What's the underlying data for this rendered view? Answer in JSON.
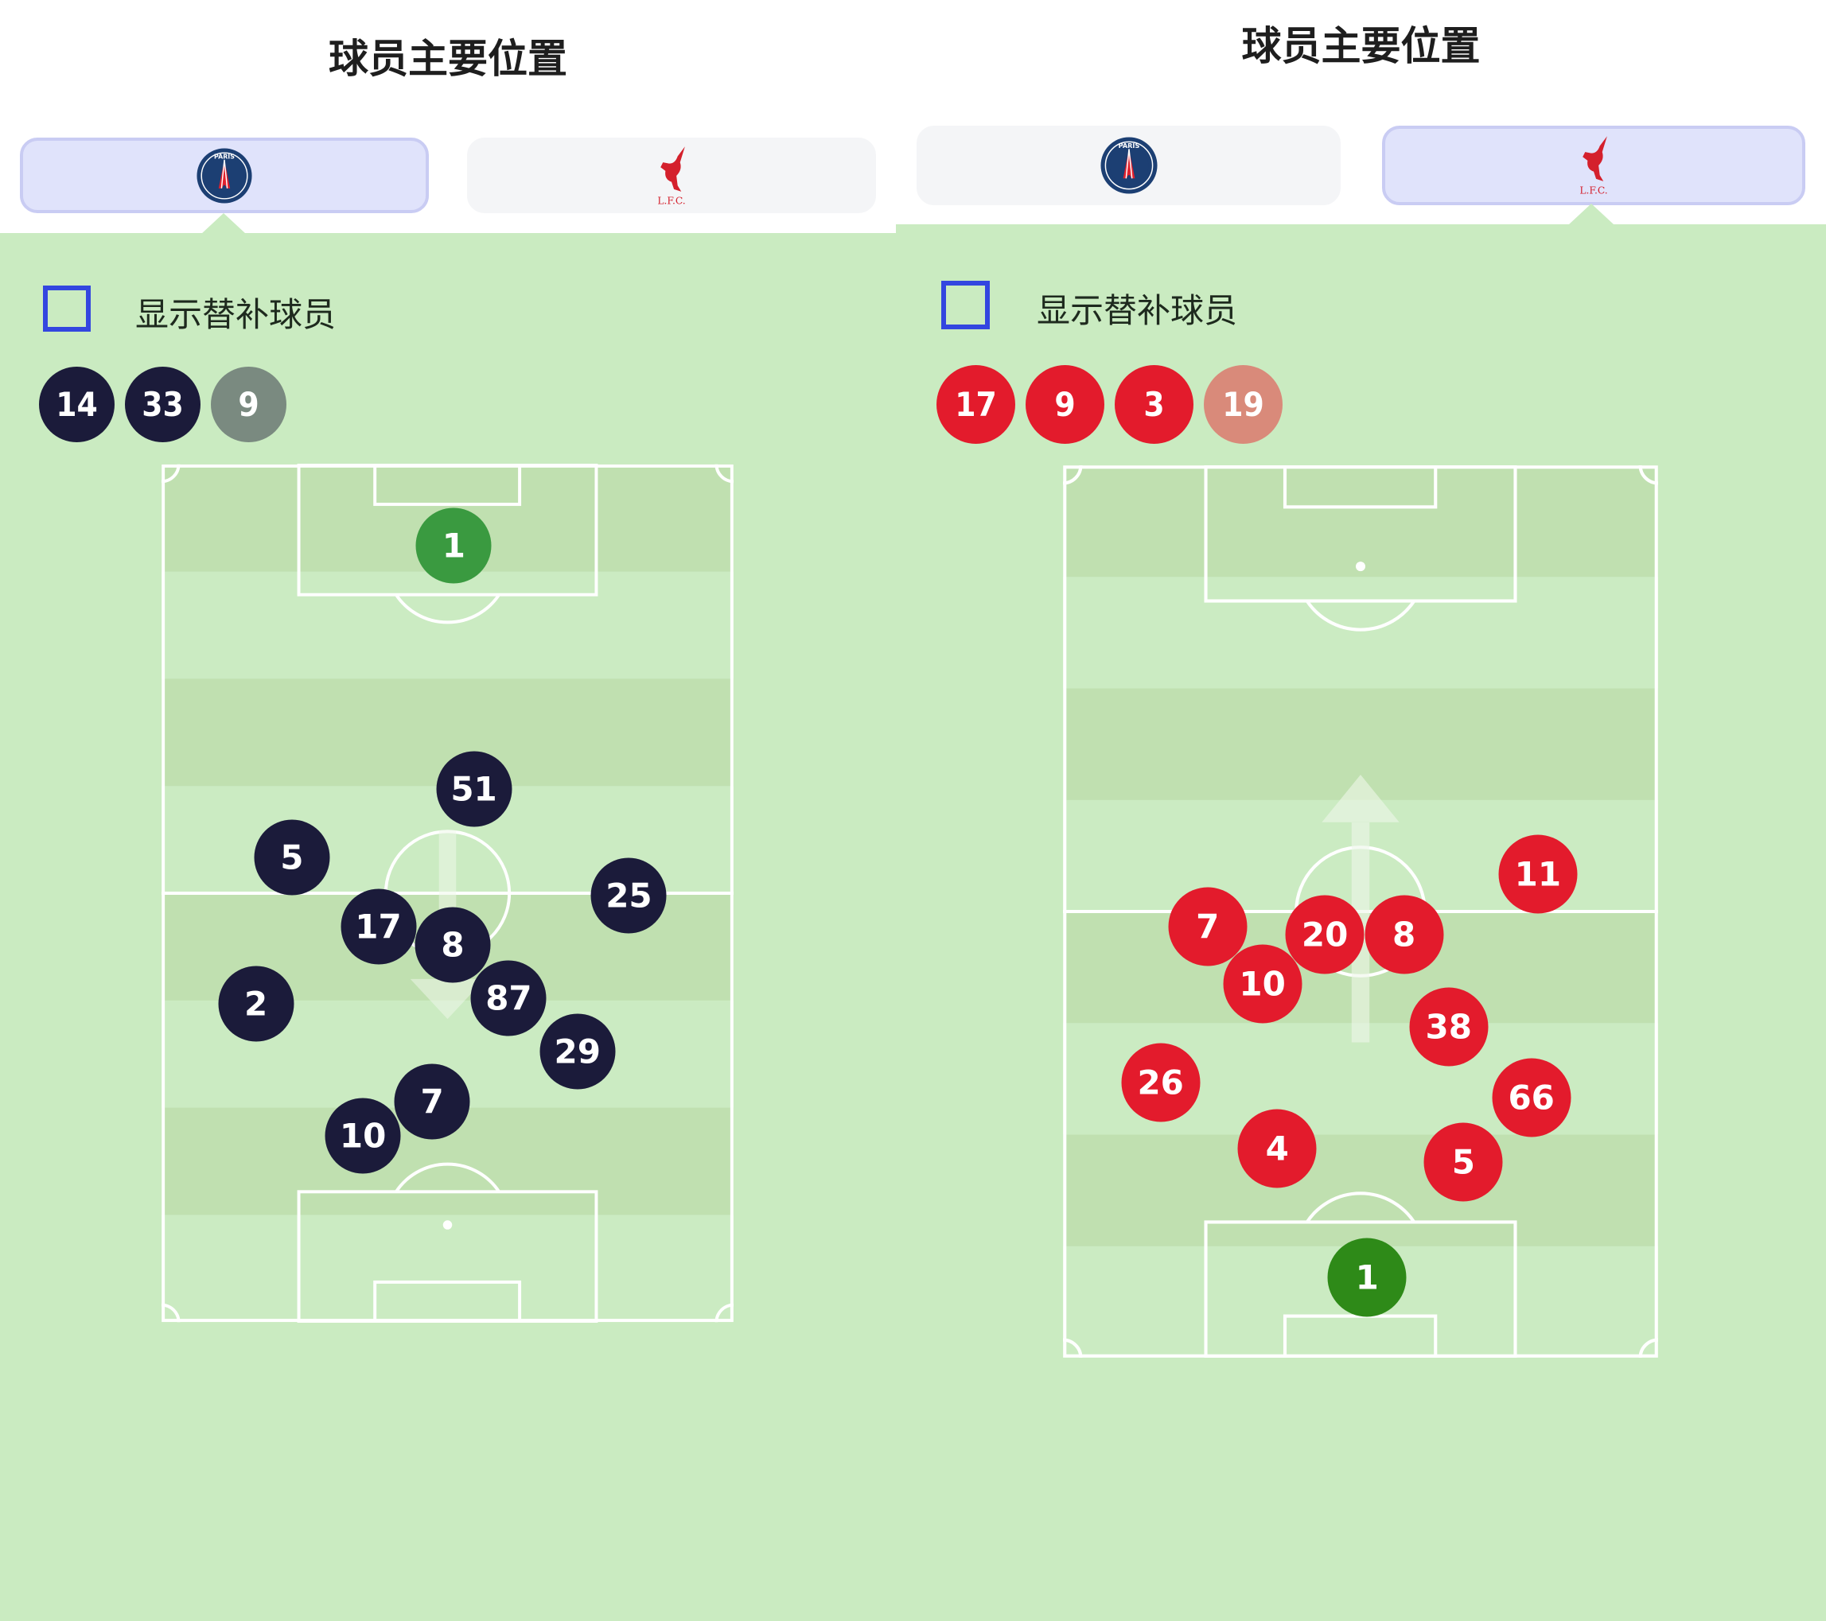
{
  "panels": [
    {
      "title": "球员主要位置",
      "tabs": [
        {
          "team": "Paris Saint-Germain",
          "logo": "psg-logo",
          "logo_text": "PARIS",
          "active": true
        },
        {
          "team": "Liverpool FC",
          "logo": "lfc-logo",
          "logo_text": "L.F.C.",
          "active": false
        }
      ],
      "show_subs_label": "显示替补球员",
      "show_subs_checked": false,
      "colors": {
        "player": "#1b1b3a",
        "goalkeeper": "#3a9a40",
        "bench_inactive": "#7a8a80"
      },
      "bench": [
        {
          "number": "14",
          "style": "player"
        },
        {
          "number": "33",
          "style": "player"
        },
        {
          "number": "9",
          "style": "bench_inactive"
        }
      ],
      "attack_direction": "down",
      "players": [
        {
          "number": "1",
          "gk": true,
          "x": 51.1,
          "y": 9.5
        },
        {
          "number": "51",
          "x": 54.6,
          "y": 37.9
        },
        {
          "number": "5",
          "x": 22.8,
          "y": 45.8
        },
        {
          "number": "25",
          "x": 81.7,
          "y": 50.3
        },
        {
          "number": "17",
          "x": 37.9,
          "y": 53.9
        },
        {
          "number": "8",
          "x": 50.9,
          "y": 56.0
        },
        {
          "number": "2",
          "x": 16.5,
          "y": 62.9
        },
        {
          "number": "87",
          "x": 60.7,
          "y": 62.2
        },
        {
          "number": "29",
          "x": 72.7,
          "y": 68.4
        },
        {
          "number": "7",
          "x": 47.3,
          "y": 74.3
        },
        {
          "number": "10",
          "x": 35.2,
          "y": 78.2
        }
      ]
    },
    {
      "title": "球员主要位置",
      "tabs": [
        {
          "team": "Paris Saint-Germain",
          "logo": "psg-logo",
          "logo_text": "PARIS",
          "active": false
        },
        {
          "team": "Liverpool FC",
          "logo": "lfc-logo",
          "logo_text": "L.F.C.",
          "active": true
        }
      ],
      "show_subs_label": "显示替补球员",
      "show_subs_checked": false,
      "colors": {
        "player": "#e31b2c",
        "goalkeeper": "#2e8a18",
        "bench_inactive": "#d98a7a"
      },
      "bench": [
        {
          "number": "17",
          "style": "player"
        },
        {
          "number": "9",
          "style": "player"
        },
        {
          "number": "3",
          "style": "player"
        },
        {
          "number": "19",
          "style": "bench_inactive"
        }
      ],
      "attack_direction": "up",
      "players": [
        {
          "number": "11",
          "x": 79.8,
          "y": 45.8
        },
        {
          "number": "7",
          "x": 24.3,
          "y": 51.7
        },
        {
          "number": "20",
          "x": 44.0,
          "y": 52.6
        },
        {
          "number": "8",
          "x": 57.3,
          "y": 52.6
        },
        {
          "number": "10",
          "x": 33.5,
          "y": 58.1
        },
        {
          "number": "38",
          "x": 64.8,
          "y": 62.9
        },
        {
          "number": "26",
          "x": 16.4,
          "y": 69.2
        },
        {
          "number": "66",
          "x": 78.7,
          "y": 70.9
        },
        {
          "number": "4",
          "x": 36.0,
          "y": 76.6
        },
        {
          "number": "5",
          "x": 67.3,
          "y": 78.1
        },
        {
          "number": "1",
          "gk": true,
          "x": 51.1,
          "y": 91.0
        }
      ]
    }
  ]
}
